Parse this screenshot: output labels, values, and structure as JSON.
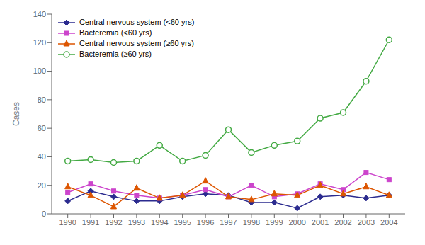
{
  "chart_data": {
    "type": "line",
    "x": [
      1990,
      1991,
      1992,
      1993,
      1994,
      1995,
      1996,
      1997,
      1998,
      1999,
      2000,
      2001,
      2002,
      2003,
      2004
    ],
    "series": [
      {
        "name": "Central nervous system (<60 yrs)",
        "color": "#2b2b8f",
        "marker": "diamond",
        "values": [
          9,
          16,
          12,
          9,
          9,
          12,
          14,
          13,
          8,
          8,
          4,
          12,
          13,
          11,
          13
        ]
      },
      {
        "name": "Bacteremia (<60 yrs)",
        "color": "#cc44cc",
        "marker": "square",
        "values": [
          15,
          21,
          16,
          13,
          11,
          13,
          17,
          12,
          20,
          12,
          14,
          21,
          17,
          29,
          24
        ]
      },
      {
        "name": "Central nervous system (≥60 yrs)",
        "color": "#dd5500",
        "marker": "triangle",
        "values": [
          19,
          13,
          5,
          18,
          11,
          13,
          23,
          12,
          10,
          14,
          13,
          20,
          14,
          19,
          13
        ]
      },
      {
        "name": "Bacteremia (≥60 yrs)",
        "color": "#44aa44",
        "marker": "open_circle",
        "values": [
          37,
          38,
          36,
          37,
          48,
          37,
          41,
          59,
          43,
          48,
          51,
          67,
          71,
          93,
          122
        ]
      }
    ],
    "ylabel": "Cases",
    "xlim": [
      1989.3,
      2004.7
    ],
    "xticks": [
      1990,
      1991,
      1992,
      1993,
      1994,
      1995,
      1996,
      1997,
      1998,
      1999,
      2000,
      2001,
      2002,
      2003,
      2004
    ],
    "ylim": [
      0,
      140
    ],
    "yticks": [
      0,
      20,
      40,
      60,
      80,
      100,
      120,
      140
    ],
    "grid": false,
    "legend": "upper left"
  }
}
